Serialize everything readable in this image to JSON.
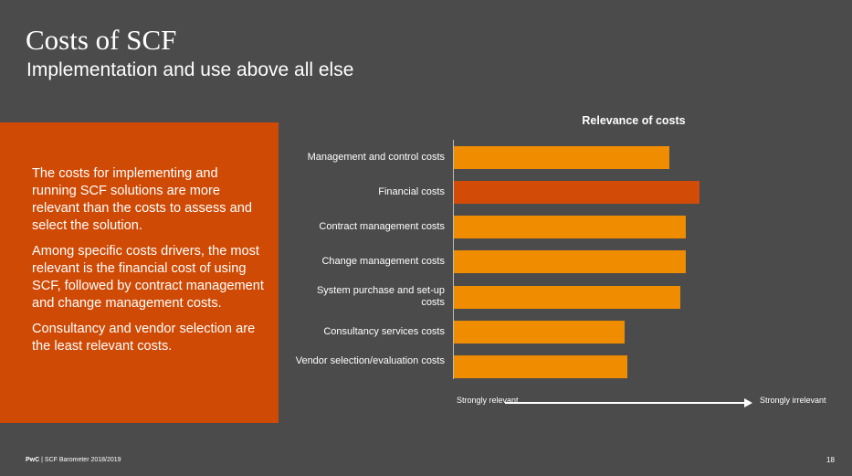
{
  "header": {
    "title": "Costs of SCF",
    "subtitle": "Implementation and use above all else"
  },
  "textbox": {
    "paragraphs": [
      "The costs for implementing and running SCF solutions are more relevant than the costs to assess and select the solution.",
      "Among specific costs drivers, the most relevant is the financial cost of using SCF, followed by contract management and change management costs.",
      "Consultancy and vendor selection are the least relevant costs."
    ],
    "background": "#cf4a05"
  },
  "chart_data": {
    "type": "bar",
    "orientation": "horizontal",
    "title": "Relevance of costs",
    "categories": [
      "Management and control costs",
      "Financial costs",
      "Contract management costs",
      "Change management costs",
      "System purchase and set-up costs",
      "Consultancy services costs",
      "Vendor selection/evaluation costs"
    ],
    "values": [
      0.78,
      0.89,
      0.84,
      0.84,
      0.82,
      0.62,
      0.63
    ],
    "colors": [
      "#ef8c00",
      "#d24c07",
      "#ef8c00",
      "#ef8c00",
      "#ef8c00",
      "#ef8c00",
      "#ef8c00"
    ],
    "xlim": [
      0,
      1
    ],
    "grid": false,
    "scale": {
      "left": "Strongly relevant",
      "right": "Strongly irrelevant"
    }
  },
  "footer": {
    "brand": "PwC",
    "separator": "|",
    "source": "SCF Barometer 2018/2019",
    "page": "18"
  }
}
